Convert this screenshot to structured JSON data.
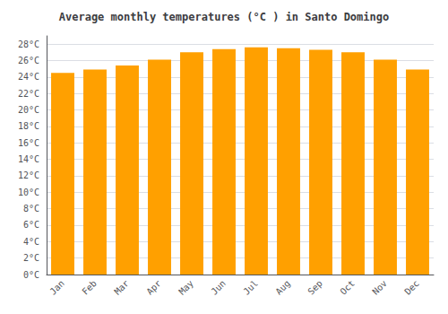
{
  "chart_data": {
    "type": "bar",
    "title": "Average monthly temperatures (°C ) in Santo Domingo",
    "categories": [
      "Jan",
      "Feb",
      "Mar",
      "Apr",
      "May",
      "Jun",
      "Jul",
      "Aug",
      "Sep",
      "Oct",
      "Nov",
      "Dec"
    ],
    "values": [
      24.5,
      24.9,
      25.4,
      26.1,
      27.0,
      27.4,
      27.6,
      27.5,
      27.3,
      27.0,
      26.1,
      24.9
    ],
    "color": "#FFA000",
    "ylim": [
      0,
      29
    ],
    "yticks": [
      {
        "value": 0,
        "label": "0°C"
      },
      {
        "value": 2,
        "label": "2°C"
      },
      {
        "value": 4,
        "label": "4°C"
      },
      {
        "value": 6,
        "label": "6°C"
      },
      {
        "value": 8,
        "label": "8°C"
      },
      {
        "value": 10,
        "label": "10°C"
      },
      {
        "value": 12,
        "label": "12°C"
      },
      {
        "value": 14,
        "label": "14°C"
      },
      {
        "value": 16,
        "label": "16°C"
      },
      {
        "value": 18,
        "label": "18°C"
      },
      {
        "value": 20,
        "label": "20°C"
      },
      {
        "value": 22,
        "label": "22°C"
      },
      {
        "value": 24,
        "label": "24°C"
      },
      {
        "value": 26,
        "label": "26°C"
      },
      {
        "value": 28,
        "label": "28°C"
      }
    ],
    "grid": true
  }
}
